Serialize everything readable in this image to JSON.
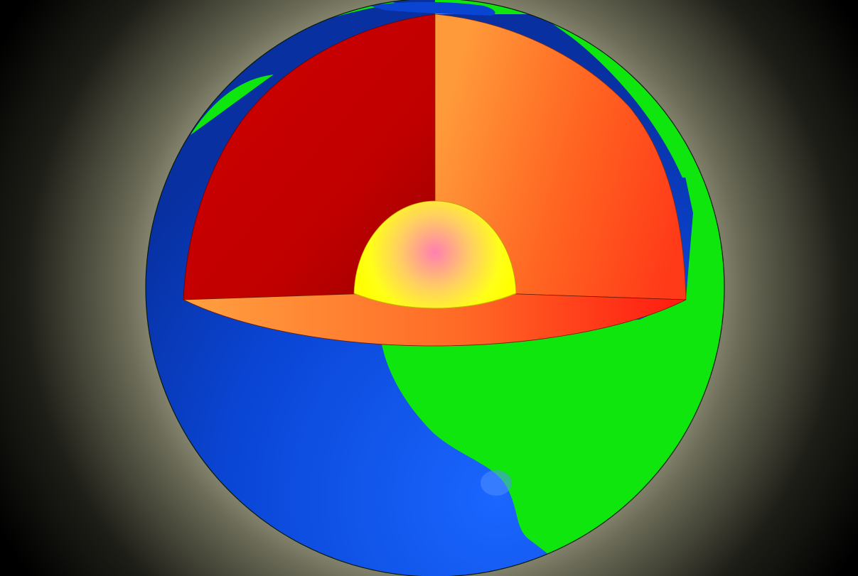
{
  "diagram": {
    "subject": "earth-cutaway",
    "layers": [
      {
        "name": "crust-ocean",
        "color": "#0a44d2"
      },
      {
        "name": "crust-land",
        "color": "#0ee60e"
      },
      {
        "name": "mantle-left-face",
        "color": "#c00000"
      },
      {
        "name": "mantle-right-face",
        "color": "#ff6a22"
      },
      {
        "name": "mantle-floor",
        "color": "#ff7a2a"
      },
      {
        "name": "outer-core",
        "color": "#ffff10"
      },
      {
        "name": "inner-core",
        "color": "#ff88b0"
      }
    ],
    "background": {
      "glow_color": "#d8d8b8",
      "edge_color": "#000000"
    }
  }
}
